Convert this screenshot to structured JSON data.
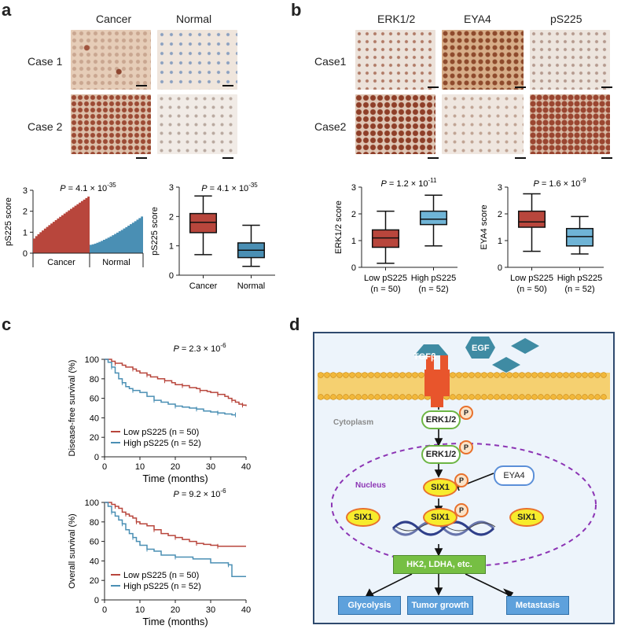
{
  "panel_a": {
    "label": "a",
    "col_headers": [
      "Cancer",
      "Normal"
    ],
    "row_labels": [
      "Case 1",
      "Case 2"
    ]
  },
  "panel_b": {
    "label": "b",
    "col_headers": [
      "ERK1/2",
      "EYA4",
      "pS225"
    ],
    "row_labels": [
      "Case1",
      "Case2"
    ]
  },
  "panel_c": {
    "label": "c"
  },
  "panel_d": {
    "label": "d"
  },
  "chart_data": [
    {
      "type": "bar",
      "id": "a_waterfall",
      "title": "P = 4.1 × 10-35",
      "ylabel": "pS225 score",
      "ylim": [
        0,
        3
      ],
      "yticks": [
        0,
        1,
        2,
        3
      ],
      "groups": [
        "Cancer",
        "Normal"
      ],
      "cancer_range": [
        0.7,
        2.7
      ],
      "normal_range": [
        0.4,
        1.75
      ]
    },
    {
      "type": "box",
      "id": "a_box",
      "title": "P = 4.1 × 10-35",
      "ylabel": "pS225 score",
      "ylim": [
        0,
        3
      ],
      "yticks": [
        0,
        1,
        2,
        3
      ],
      "categories": [
        "Cancer",
        "Normal"
      ],
      "boxes": [
        {
          "min": 0.7,
          "q1": 1.45,
          "median": 1.8,
          "q3": 2.1,
          "max": 2.7,
          "color": "#b8463c"
        },
        {
          "min": 0.3,
          "q1": 0.6,
          "median": 0.85,
          "q3": 1.1,
          "max": 1.7,
          "color": "#4a8fb4"
        }
      ]
    },
    {
      "type": "box",
      "id": "b_erk",
      "title": "P = 1.2 × 10-11",
      "ylabel": "ERK1/2 score",
      "ylim": [
        0,
        3
      ],
      "yticks": [
        0,
        1,
        2,
        3
      ],
      "categories": [
        "Low pS225",
        "High pS225"
      ],
      "subcategories": [
        "(n = 50)",
        "(n = 52)"
      ],
      "boxes": [
        {
          "min": 0.15,
          "q1": 0.75,
          "median": 1.1,
          "q3": 1.4,
          "max": 2.1,
          "color": "#b8463c"
        },
        {
          "min": 0.8,
          "q1": 1.6,
          "median": 1.8,
          "q3": 2.1,
          "max": 2.7,
          "color": "#6fb4d6"
        }
      ]
    },
    {
      "type": "box",
      "id": "b_eya",
      "title": "P = 1.6 × 10-9",
      "ylabel": "EYA4 score",
      "ylim": [
        0,
        3
      ],
      "yticks": [
        0,
        1,
        2,
        3
      ],
      "categories": [
        "Low pS225",
        "High pS225"
      ],
      "subcategories": [
        "(n = 50)",
        "(n = 52)"
      ],
      "boxes": [
        {
          "min": 0.6,
          "q1": 1.5,
          "median": 1.7,
          "q3": 2.1,
          "max": 2.75,
          "color": "#b8463c"
        },
        {
          "min": 0.5,
          "q1": 0.8,
          "median": 1.15,
          "q3": 1.45,
          "max": 1.9,
          "color": "#6fb4d6"
        }
      ]
    },
    {
      "type": "line",
      "id": "c_dfs",
      "title": "P = 2.3 × 10-6",
      "xlabel": "Time (months)",
      "ylabel": "Disease-free survival (%)",
      "xlim": [
        0,
        40
      ],
      "ylim": [
        0,
        100
      ],
      "xticks": [
        0,
        10,
        20,
        30,
        40
      ],
      "yticks": [
        0,
        20,
        40,
        60,
        80,
        100
      ],
      "series": [
        {
          "name": "Low pS225 (n = 50)",
          "color": "#b8463c",
          "x": [
            0,
            2,
            3,
            5,
            6,
            8,
            9,
            10,
            12,
            13,
            15,
            17,
            19,
            20,
            22,
            24,
            26,
            27,
            29,
            30,
            32,
            34,
            35,
            36,
            37,
            38,
            39,
            40
          ],
          "y": [
            100,
            98,
            96,
            94,
            92,
            90,
            88,
            86,
            84,
            82,
            80,
            78,
            76,
            74,
            73,
            71,
            70,
            68,
            67,
            66,
            64,
            62,
            60,
            58,
            56,
            54,
            53,
            52
          ]
        },
        {
          "name": "High pS225 (n = 52)",
          "color": "#4a8fb4",
          "x": [
            0,
            1,
            2,
            3,
            4,
            5,
            6,
            7,
            8,
            10,
            12,
            14,
            16,
            18,
            20,
            22,
            24,
            26,
            28,
            30,
            32,
            34,
            36,
            37
          ],
          "y": [
            100,
            97,
            92,
            86,
            80,
            76,
            72,
            70,
            68,
            66,
            62,
            58,
            56,
            54,
            52,
            51,
            50,
            49,
            47,
            46,
            45,
            44,
            43,
            43
          ]
        }
      ]
    },
    {
      "type": "line",
      "id": "c_os",
      "title": "P = 9.2 × 10-6",
      "xlabel": "Time (months)",
      "ylabel": "Overall survival (%)",
      "xlim": [
        0,
        40
      ],
      "ylim": [
        0,
        100
      ],
      "xticks": [
        0,
        10,
        20,
        30,
        40
      ],
      "yticks": [
        0,
        20,
        40,
        60,
        80,
        100
      ],
      "series": [
        {
          "name": "Low pS225 (n = 50)",
          "color": "#b8463c",
          "x": [
            0,
            2,
            3,
            4,
            5,
            6,
            7,
            8,
            9,
            10,
            12,
            14,
            16,
            18,
            20,
            22,
            24,
            26,
            28,
            30,
            32,
            40
          ],
          "y": [
            100,
            98,
            96,
            94,
            90,
            88,
            86,
            84,
            80,
            78,
            76,
            72,
            68,
            66,
            64,
            62,
            60,
            58,
            57,
            56,
            55,
            55
          ]
        },
        {
          "name": "High pS225 (n = 52)",
          "color": "#4a8fb4",
          "x": [
            0,
            1,
            2,
            3,
            4,
            5,
            6,
            7,
            8,
            9,
            10,
            12,
            14,
            16,
            20,
            25,
            30,
            35,
            36,
            40
          ],
          "y": [
            100,
            96,
            90,
            86,
            82,
            78,
            72,
            68,
            64,
            60,
            56,
            52,
            50,
            46,
            44,
            42,
            38,
            36,
            24,
            24
          ]
        }
      ]
    }
  ],
  "diagram": {
    "ligands": [
      "TGFβ",
      "EGF"
    ],
    "cytoplasm_label": "Cytoplasm",
    "nucleus_label": "Nucleus",
    "erk_label": "ERK1/2",
    "eya_label": "EYA4",
    "six_label": "SIX1",
    "phospho_label": "P",
    "targets_label": "HK2, LDHA, etc.",
    "outcomes": [
      "Glycolysis",
      "Tumor growth",
      "Metastasis"
    ]
  }
}
